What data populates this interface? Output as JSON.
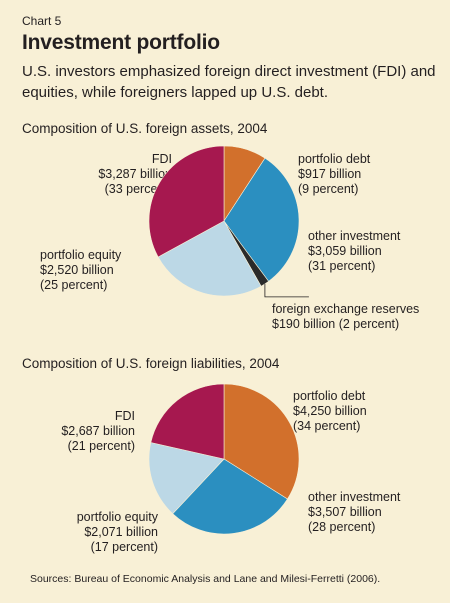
{
  "header": {
    "chart_label": "Chart 5",
    "title": "Investment portfolio",
    "subtitle": "U.S. investors emphasized foreign direct investment (FDI) and equities, while foreigners lapped up U.S. debt."
  },
  "colors": {
    "fdi": "#a6184f",
    "portfolio_debt": "#d2702c",
    "other_investment": "#2b8fc0",
    "portfolio_equity": "#bcd8e6",
    "reserves": "#2a2a2a",
    "background": "#f8f0d6"
  },
  "chart_data": [
    {
      "type": "pie",
      "title": "Composition of U.S. foreign assets, 2004",
      "slices": [
        {
          "key": "portfolio_debt",
          "label": "portfolio debt",
          "value_text": "$917 billion",
          "percent_text": "(9 percent)",
          "value": 917
        },
        {
          "key": "other_investment",
          "label": "other investment",
          "value_text": "$3,059 billion",
          "percent_text": "(31 percent)",
          "value": 3059
        },
        {
          "key": "reserves",
          "label": "foreign exchange reserves",
          "value_text": "$190 billion (2 percent)",
          "value": 190
        },
        {
          "key": "portfolio_equity",
          "label": "portfolio equity",
          "value_text": "$2,520 billion",
          "percent_text": "(25 percent)",
          "value": 2520
        },
        {
          "key": "fdi",
          "label": "FDI",
          "value_text": "$3,287 billion",
          "percent_text": "(33 percent)",
          "value": 3287
        }
      ]
    },
    {
      "type": "pie",
      "title": "Composition of U.S. foreign liabilities, 2004",
      "slices": [
        {
          "key": "portfolio_debt",
          "label": "portfolio debt",
          "value_text": "$4,250 billion",
          "percent_text": "(34 percent)",
          "value": 4250
        },
        {
          "key": "other_investment",
          "label": "other investment",
          "value_text": "$3,507 billion",
          "percent_text": "(28 percent)",
          "value": 3507
        },
        {
          "key": "portfolio_equity",
          "label": "portfolio equity",
          "value_text": "$2,071 billion",
          "percent_text": "(17 percent)",
          "value": 2071
        },
        {
          "key": "fdi",
          "label": "FDI",
          "value_text": "$2,687 billion",
          "percent_text": "(21 percent)",
          "value": 2687
        }
      ]
    }
  ],
  "footer": {
    "sources": "Sources: Bureau of Economic Analysis and Lane and Milesi-Ferretti (2006)."
  }
}
